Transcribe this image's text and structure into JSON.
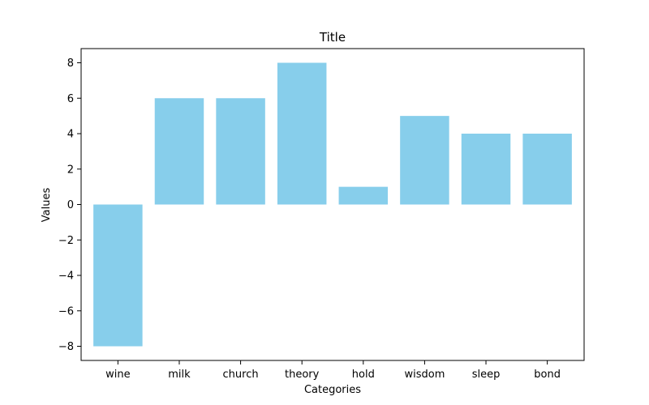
{
  "chart_data": {
    "type": "bar",
    "title": "Title",
    "xlabel": "Categories",
    "ylabel": "Values",
    "categories": [
      "wine",
      "milk",
      "church",
      "theory",
      "hold",
      "wisdom",
      "sleep",
      "bond"
    ],
    "values": [
      -8,
      6,
      6,
      8,
      1,
      5,
      4,
      4
    ],
    "ylim": [
      -8.8,
      8.8
    ],
    "yticks": [
      -8,
      -6,
      -4,
      -2,
      0,
      2,
      4,
      6,
      8
    ],
    "ytick_labels": [
      "−8",
      "−6",
      "−4",
      "−2",
      "0",
      "2",
      "4",
      "6",
      "8"
    ],
    "bar_color": "#87ceeb",
    "grid": false,
    "legend": "none"
  }
}
